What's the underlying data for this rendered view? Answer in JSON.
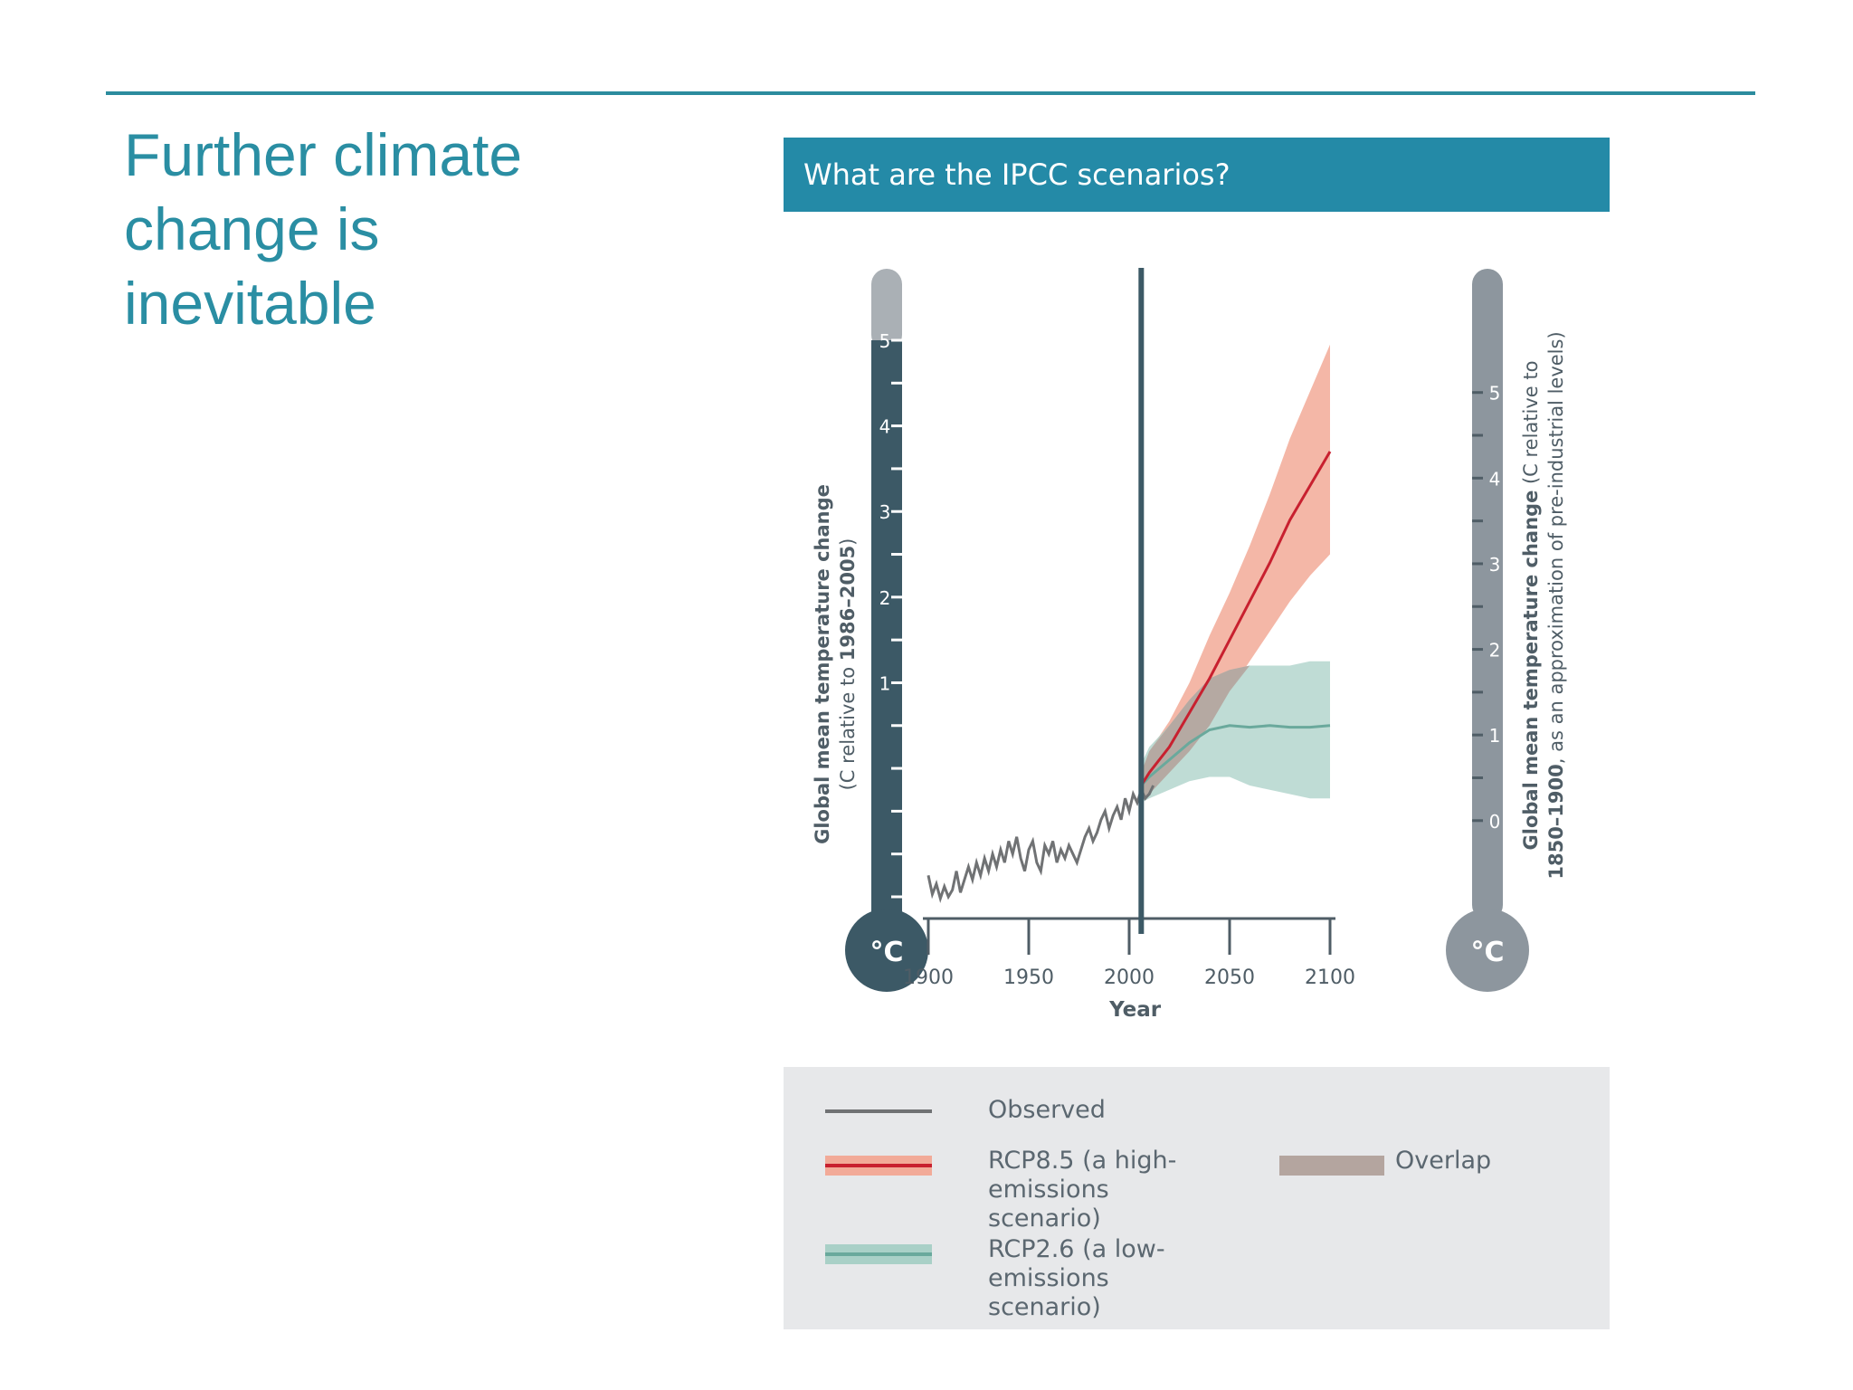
{
  "slide": {
    "title_lines": [
      "Further climate",
      "change is",
      "inevitable"
    ]
  },
  "panel": {
    "header": "What are the IPCC scenarios?"
  },
  "chart_data": {
    "type": "line",
    "xlabel": "Year",
    "x_ticks": [
      1900,
      1950,
      2000,
      2050,
      2100
    ],
    "xlim": [
      1900,
      2100
    ],
    "present_year": 2006,
    "left_axis": {
      "unit": "°C",
      "label_bold": "Global mean temperature change",
      "label_rest_prefix": "(C relative to ",
      "label_rest_bold": "1986–2005",
      "label_rest_suffix": ")",
      "ticks": [
        1,
        2,
        3,
        4,
        5
      ],
      "ylim": [
        -1.5,
        5
      ]
    },
    "right_axis": {
      "unit": "°C",
      "label_bold": "Global mean temperature change",
      "label_rest_prefix": " (C relative to",
      "label_line2_bold": "1850–1900",
      "label_line2_rest": ", as an approximation of pre-industrial levels)",
      "ticks": [
        0,
        1,
        2,
        3,
        4,
        5
      ],
      "offset_from_left": 0.61
    },
    "series": [
      {
        "name": "Observed",
        "color": "#707274",
        "x": [
          1900,
          1902,
          1904,
          1906,
          1908,
          1910,
          1912,
          1914,
          1916,
          1918,
          1920,
          1922,
          1924,
          1926,
          1928,
          1930,
          1932,
          1934,
          1936,
          1938,
          1940,
          1942,
          1944,
          1946,
          1948,
          1950,
          1952,
          1954,
          1956,
          1958,
          1960,
          1962,
          1964,
          1966,
          1968,
          1970,
          1972,
          1974,
          1976,
          1978,
          1980,
          1982,
          1984,
          1986,
          1988,
          1990,
          1992,
          1994,
          1996,
          1998,
          2000,
          2002,
          2004,
          2006,
          2008,
          2010,
          2012
        ],
        "y": [
          -1.25,
          -1.47,
          -1.35,
          -1.52,
          -1.38,
          -1.5,
          -1.42,
          -1.2,
          -1.45,
          -1.3,
          -1.15,
          -1.3,
          -1.1,
          -1.25,
          -1.05,
          -1.2,
          -1.0,
          -1.15,
          -0.95,
          -1.1,
          -0.85,
          -1.0,
          -0.8,
          -1.05,
          -1.2,
          -0.95,
          -0.85,
          -1.1,
          -1.2,
          -0.9,
          -1.0,
          -0.85,
          -1.1,
          -0.95,
          -1.05,
          -0.9,
          -1.0,
          -1.1,
          -0.95,
          -0.8,
          -0.7,
          -0.85,
          -0.75,
          -0.6,
          -0.5,
          -0.7,
          -0.55,
          -0.45,
          -0.6,
          -0.35,
          -0.5,
          -0.3,
          -0.4,
          -0.25,
          -0.35,
          -0.3,
          -0.2
        ]
      },
      {
        "name": "RCP8.5 (a high-emissions scenario)",
        "color": "#c8202f",
        "band_color": "#f2aa98",
        "x": [
          2006,
          2010,
          2020,
          2030,
          2040,
          2050,
          2060,
          2070,
          2080,
          2090,
          2100
        ],
        "y": [
          -0.2,
          -0.05,
          0.25,
          0.65,
          1.05,
          1.5,
          1.95,
          2.4,
          2.9,
          3.3,
          3.7
        ],
        "lower": [
          -0.4,
          -0.3,
          -0.05,
          0.2,
          0.5,
          0.9,
          1.25,
          1.6,
          1.95,
          2.25,
          2.5
        ],
        "upper": [
          -0.05,
          0.2,
          0.55,
          1.0,
          1.55,
          2.05,
          2.6,
          3.2,
          3.85,
          4.4,
          4.95
        ]
      },
      {
        "name": "RCP2.6 (a low-emissions scenario)",
        "color": "#6aa99c",
        "band_color": "#a9d0c7",
        "x": [
          2006,
          2010,
          2020,
          2030,
          2040,
          2050,
          2060,
          2070,
          2080,
          2090,
          2100
        ],
        "y": [
          -0.2,
          -0.1,
          0.1,
          0.3,
          0.45,
          0.5,
          0.48,
          0.5,
          0.48,
          0.48,
          0.5
        ],
        "lower": [
          -0.4,
          -0.35,
          -0.25,
          -0.15,
          -0.1,
          -0.1,
          -0.2,
          -0.25,
          -0.3,
          -0.35,
          -0.35
        ],
        "upper": [
          0.05,
          0.25,
          0.5,
          0.8,
          1.05,
          1.15,
          1.2,
          1.2,
          1.2,
          1.25,
          1.25
        ]
      }
    ],
    "legend": {
      "observed": "Observed",
      "rcp85_line1": "RCP8.5 (a high-emissions",
      "rcp85_line2": "scenario)",
      "rcp26_line1": "RCP2.6 (a low-emissions",
      "rcp26_line2": "scenario)",
      "overlap": "Overlap",
      "overlap_color": "#b4a59f"
    }
  }
}
